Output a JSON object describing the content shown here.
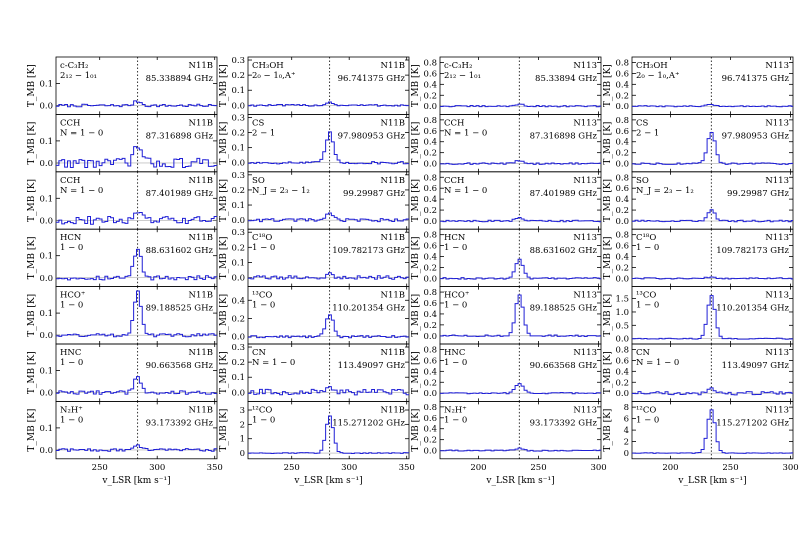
{
  "figure": {
    "y_axis_label": "T_MB [K]",
    "x_axis_label": "v_LSR [km s⁻¹]"
  },
  "chart_data": [
    {
      "column": 1,
      "source": "N11B",
      "type": "line",
      "style": "step",
      "color": "#1f1fd6",
      "marker_color": "#000000",
      "xlim": [
        212,
        352
      ],
      "xticks": [
        250,
        300,
        350
      ],
      "vline": 283,
      "panels": [
        {
          "molecule": "c-C₃H₂",
          "transition": "2₁₂ − 1₀₁",
          "frequency": "85.338894 GHz",
          "ylim": [
            -0.04,
            0.22
          ],
          "yticks": [
            0.0,
            0.1
          ],
          "peak": 0.02,
          "noise": 0.006
        },
        {
          "molecule": "CCH",
          "transition": "N = 1 − 0",
          "frequency": "87.316898 GHz",
          "ylim": [
            -0.04,
            0.22
          ],
          "yticks": [
            0.0,
            0.1
          ],
          "peak": 0.08,
          "noise": 0.022
        },
        {
          "molecule": "CCH",
          "transition": "N = 1 − 0",
          "frequency": "87.401989 GHz",
          "ylim": [
            -0.04,
            0.22
          ],
          "yticks": [
            0.0,
            0.1
          ],
          "peak": 0.04,
          "noise": 0.018
        },
        {
          "molecule": "HCN",
          "transition": "1 − 0",
          "frequency": "88.631602 GHz",
          "ylim": [
            -0.04,
            0.22
          ],
          "yticks": [
            0.0,
            0.1
          ],
          "peak": 0.13,
          "noise": 0.01
        },
        {
          "molecule": "HCO⁺",
          "transition": "1 − 0",
          "frequency": "89.188525 GHz",
          "ylim": [
            -0.04,
            0.22
          ],
          "yticks": [
            0.0,
            0.1
          ],
          "peak": 0.2,
          "noise": 0.008
        },
        {
          "molecule": "HNC",
          "transition": "1 − 0",
          "frequency": "90.663568 GHz",
          "ylim": [
            -0.04,
            0.22
          ],
          "yticks": [
            0.0,
            0.1
          ],
          "peak": 0.07,
          "noise": 0.008
        },
        {
          "molecule": "N₂H⁺",
          "transition": "1 − 0",
          "frequency": "93.173392 GHz",
          "ylim": [
            -0.04,
            0.22
          ],
          "yticks": [
            0.0,
            0.1
          ],
          "peak": 0.02,
          "noise": 0.006
        }
      ]
    },
    {
      "column": 2,
      "source": "N11B",
      "type": "line",
      "style": "step",
      "color": "#1f1fd6",
      "marker_color": "#000000",
      "xlim": [
        212,
        352
      ],
      "xticks": [
        250,
        300,
        350
      ],
      "vline": 283,
      "panels": [
        {
          "molecule": "CH₃OH",
          "transition": "2₀ − 1₀,A⁺",
          "frequency": "96.741375 GHz",
          "ylim": [
            -0.06,
            0.32
          ],
          "yticks": [
            0.0,
            0.1,
            0.2,
            0.3
          ],
          "peak": 0.02,
          "noise": 0.006
        },
        {
          "molecule": "CS",
          "transition": "2 − 1",
          "frequency": "97.980953 GHz",
          "ylim": [
            -0.06,
            0.32
          ],
          "yticks": [
            0.0,
            0.1,
            0.2,
            0.3
          ],
          "peak": 0.2,
          "noise": 0.008
        },
        {
          "molecule": "SO",
          "transition": "N_J = 2₃ − 1₂",
          "frequency": "99.29987 GHz",
          "ylim": [
            -0.06,
            0.32
          ],
          "yticks": [
            0.0,
            0.1,
            0.2,
            0.3
          ],
          "peak": 0.04,
          "noise": 0.01
        },
        {
          "molecule": "C¹⁸O",
          "transition": "1 − 0",
          "frequency": "109.782173 GHz",
          "ylim": [
            -0.06,
            0.32
          ],
          "yticks": [
            0.0,
            0.1,
            0.2,
            0.3
          ],
          "peak": 0.02,
          "noise": 0.012
        },
        {
          "molecule": "¹³CO",
          "transition": "1 − 0",
          "frequency": "110.201354 GHz",
          "ylim": [
            -0.08,
            0.55
          ],
          "yticks": [
            0.0,
            0.2,
            0.4
          ],
          "peak": 0.25,
          "noise": 0.012
        },
        {
          "molecule": "CN",
          "transition": "N = 1 − 0",
          "frequency": "113.49097 GHz",
          "ylim": [
            -0.06,
            0.32
          ],
          "yticks": [
            0.0,
            0.1,
            0.2,
            0.3
          ],
          "peak": 0.05,
          "noise": 0.02
        },
        {
          "molecule": "¹²CO",
          "transition": "1 − 0",
          "frequency": "115.271202 GHz",
          "ylim": [
            -0.4,
            3.6
          ],
          "yticks": [
            0,
            1,
            2,
            3
          ],
          "peak": 2.6,
          "noise": 0.03
        }
      ]
    },
    {
      "column": 3,
      "source": "N113",
      "type": "line",
      "style": "step",
      "color": "#1f1fd6",
      "marker_color": "#000000",
      "xlim": [
        168,
        302
      ],
      "xticks": [
        200,
        250,
        300
      ],
      "vline": 234,
      "panels": [
        {
          "molecule": "c-C₃H₂",
          "transition": "2₁₂ − 1₀₁",
          "frequency": "85.33894 GHz",
          "ylim": [
            -0.15,
            0.9
          ],
          "yticks": [
            0.0,
            0.2,
            0.4,
            0.6,
            0.8
          ],
          "peak": 0.04,
          "noise": 0.012
        },
        {
          "molecule": "CCH",
          "transition": "N = 1 − 0",
          "frequency": "87.316898 GHz",
          "ylim": [
            -0.15,
            0.9
          ],
          "yticks": [
            0.0,
            0.2,
            0.4,
            0.6,
            0.8
          ],
          "peak": 0.06,
          "noise": 0.015
        },
        {
          "molecule": "CCH",
          "transition": "N = 1 − 0",
          "frequency": "87.401989 GHz",
          "ylim": [
            -0.15,
            0.9
          ],
          "yticks": [
            0.0,
            0.2,
            0.4,
            0.6,
            0.8
          ],
          "peak": 0.06,
          "noise": 0.015
        },
        {
          "molecule": "HCN",
          "transition": "1 − 0",
          "frequency": "88.631602 GHz",
          "ylim": [
            -0.15,
            0.9
          ],
          "yticks": [
            0.0,
            0.2,
            0.4,
            0.6,
            0.8
          ],
          "peak": 0.36,
          "noise": 0.015
        },
        {
          "molecule": "HCO⁺",
          "transition": "1 − 0",
          "frequency": "89.188525 GHz",
          "ylim": [
            -0.15,
            0.9
          ],
          "yticks": [
            0.0,
            0.2,
            0.4,
            0.6,
            0.8
          ],
          "peak": 0.74,
          "noise": 0.015
        },
        {
          "molecule": "HNC",
          "transition": "1 − 0",
          "frequency": "90.663568 GHz",
          "ylim": [
            -0.15,
            0.9
          ],
          "yticks": [
            0.0,
            0.2,
            0.4,
            0.6,
            0.8
          ],
          "peak": 0.18,
          "noise": 0.012
        },
        {
          "molecule": "N₂H⁺",
          "transition": "1 − 0",
          "frequency": "93.173392 GHz",
          "ylim": [
            -0.15,
            0.9
          ],
          "yticks": [
            0.0,
            0.2,
            0.4,
            0.6,
            0.8
          ],
          "peak": 0.04,
          "noise": 0.01
        }
      ]
    },
    {
      "column": 4,
      "source": "N113",
      "type": "line",
      "style": "step",
      "color": "#1f1fd6",
      "marker_color": "#000000",
      "xlim": [
        168,
        302
      ],
      "xticks": [
        200,
        250,
        300
      ],
      "vline": 234,
      "panels": [
        {
          "molecule": "CH₃OH",
          "transition": "2₀ − 1₀,A⁺",
          "frequency": "96.741375 GHz",
          "ylim": [
            -0.15,
            0.9
          ],
          "yticks": [
            0.0,
            0.2,
            0.4,
            0.6,
            0.8
          ],
          "peak": 0.03,
          "noise": 0.01
        },
        {
          "molecule": "CS",
          "transition": "2 − 1",
          "frequency": "97.980953 GHz",
          "ylim": [
            -0.15,
            0.9
          ],
          "yticks": [
            0.0,
            0.2,
            0.4,
            0.6,
            0.8
          ],
          "peak": 0.58,
          "noise": 0.015
        },
        {
          "molecule": "SO",
          "transition": "N_J = 2₃ − 1₂",
          "frequency": "99.29987 GHz",
          "ylim": [
            -0.15,
            0.9
          ],
          "yticks": [
            0.0,
            0.2,
            0.4,
            0.6,
            0.8
          ],
          "peak": 0.2,
          "noise": 0.015
        },
        {
          "molecule": "C¹⁸O",
          "transition": "1 − 0",
          "frequency": "109.782173 GHz",
          "ylim": [
            -0.15,
            0.9
          ],
          "yticks": [
            0.0,
            0.2,
            0.4,
            0.6,
            0.8
          ],
          "peak": 0.03,
          "noise": 0.012
        },
        {
          "molecule": "¹³CO",
          "transition": "1 − 0",
          "frequency": "110.201354 GHz",
          "ylim": [
            -0.2,
            1.95
          ],
          "yticks": [
            0.0,
            0.5,
            1.0,
            1.5
          ],
          "peak": 1.6,
          "noise": 0.02
        },
        {
          "molecule": "CN",
          "transition": "N = 1 − 0",
          "frequency": "113.49097 GHz",
          "ylim": [
            -0.15,
            0.9
          ],
          "yticks": [
            0.0,
            0.2,
            0.4,
            0.6,
            0.8
          ],
          "peak": 0.1,
          "noise": 0.03
        },
        {
          "molecule": "¹²CO",
          "transition": "1 − 0",
          "frequency": "115.271202 GHz",
          "ylim": [
            -1.0,
            9.0
          ],
          "yticks": [
            0,
            2,
            4,
            6,
            8
          ],
          "peak": 7.6,
          "noise": 0.05
        }
      ]
    }
  ]
}
